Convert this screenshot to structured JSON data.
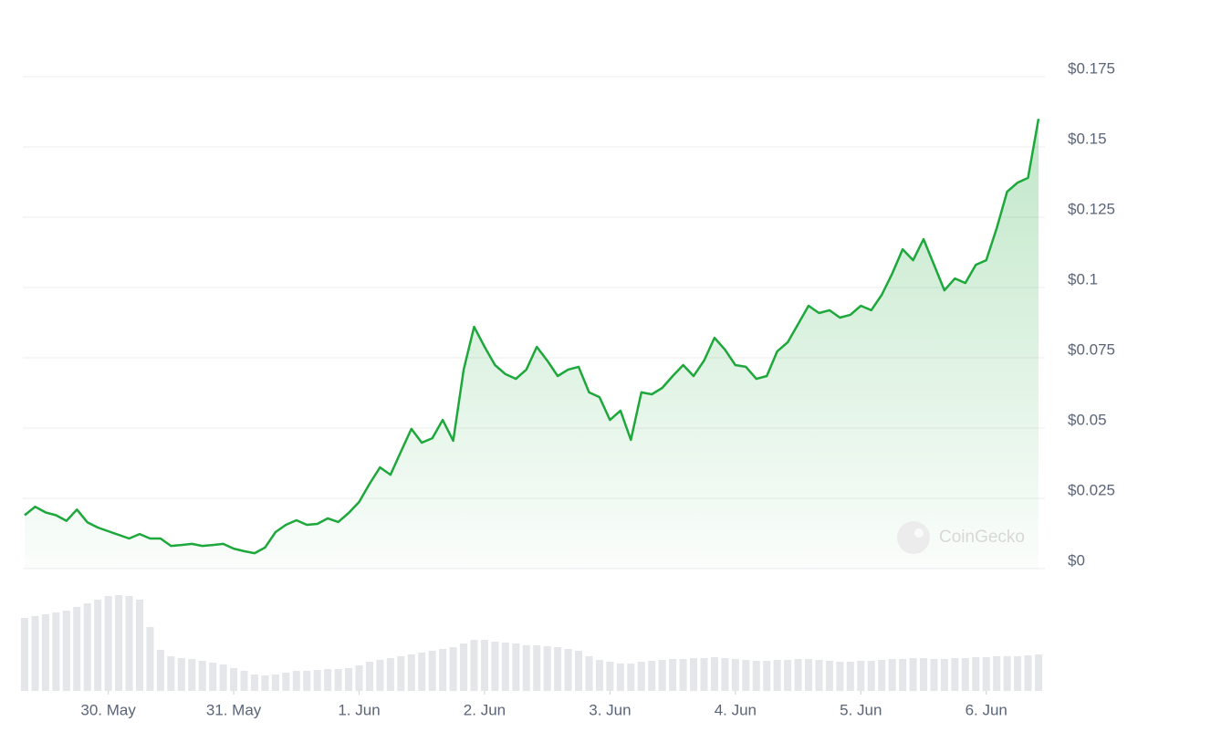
{
  "chart_data": {
    "type": "line",
    "color": "#1ea83c",
    "watermark": "CoinGecko",
    "xlim": [
      0,
      97
    ],
    "xticks": [
      {
        "value": 8,
        "label": "30. May"
      },
      {
        "value": 20,
        "label": "31. May"
      },
      {
        "value": 32,
        "label": "1. Jun"
      },
      {
        "value": 44,
        "label": "2. Jun"
      },
      {
        "value": 56,
        "label": "3. Jun"
      },
      {
        "value": 68,
        "label": "4. Jun"
      },
      {
        "value": 80,
        "label": "5. Jun"
      },
      {
        "value": 92,
        "label": "6. Jun"
      }
    ],
    "ylim": [
      0,
      0.175
    ],
    "yticks": [
      {
        "value": 0,
        "label": "$0"
      },
      {
        "value": 0.025,
        "label": "$0.025"
      },
      {
        "value": 0.05,
        "label": "$0.05"
      },
      {
        "value": 0.075,
        "label": "$0.075"
      },
      {
        "value": 0.1,
        "label": "$0.1"
      },
      {
        "value": 0.125,
        "label": "$0.125"
      },
      {
        "value": 0.15,
        "label": "$0.15"
      },
      {
        "value": 0.175,
        "label": "$0.175"
      }
    ],
    "grid": true,
    "values": [
      0.019,
      0.022,
      0.02,
      0.019,
      0.017,
      0.021,
      0.0165,
      0.0146,
      0.0133,
      0.012,
      0.0107,
      0.0123,
      0.0107,
      0.0107,
      0.0081,
      0.0084,
      0.0088,
      0.0081,
      0.0084,
      0.0088,
      0.0071,
      0.0062,
      0.0055,
      0.0075,
      0.013,
      0.0156,
      0.0172,
      0.0156,
      0.0159,
      0.0179,
      0.0166,
      0.0198,
      0.0237,
      0.0302,
      0.036,
      0.0334,
      0.0416,
      0.0497,
      0.0448,
      0.0464,
      0.0529,
      0.0455,
      0.0708,
      0.086,
      0.0789,
      0.0724,
      0.0692,
      0.0675,
      0.0708,
      0.0789,
      0.074,
      0.0685,
      0.0708,
      0.0718,
      0.0627,
      0.061,
      0.0529,
      0.0562,
      0.0458,
      0.0627,
      0.062,
      0.0643,
      0.0685,
      0.0724,
      0.0685,
      0.074,
      0.0821,
      0.0779,
      0.0724,
      0.0718,
      0.0675,
      0.0685,
      0.0773,
      0.0805,
      0.087,
      0.0935,
      0.0909,
      0.0919,
      0.0893,
      0.0903,
      0.0935,
      0.0919,
      0.0974,
      0.1049,
      0.1136,
      0.1097,
      0.1172,
      0.1081,
      0.099,
      0.1032,
      0.1016,
      0.1081,
      0.1097,
      0.1211,
      0.1341,
      0.1373,
      0.139,
      0.16
    ],
    "volume": [
      80,
      82,
      84,
      86,
      88,
      92,
      96,
      100,
      104,
      105,
      104,
      100,
      70,
      45,
      38,
      36,
      35,
      33,
      31,
      29,
      25,
      22,
      18,
      17,
      18,
      20,
      22,
      22,
      23,
      24,
      24,
      25,
      28,
      32,
      34,
      36,
      38,
      40,
      42,
      44,
      46,
      48,
      52,
      56,
      56,
      54,
      53,
      52,
      50,
      50,
      49,
      48,
      46,
      44,
      38,
      34,
      32,
      30,
      30,
      32,
      33,
      34,
      35,
      35,
      36,
      36,
      37,
      36,
      35,
      34,
      33,
      33,
      34,
      34,
      35,
      35,
      34,
      33,
      32,
      32,
      33,
      33,
      34,
      35,
      35,
      36,
      36,
      35,
      35,
      36,
      36,
      37,
      37,
      38,
      38,
      38,
      39,
      40
    ]
  }
}
